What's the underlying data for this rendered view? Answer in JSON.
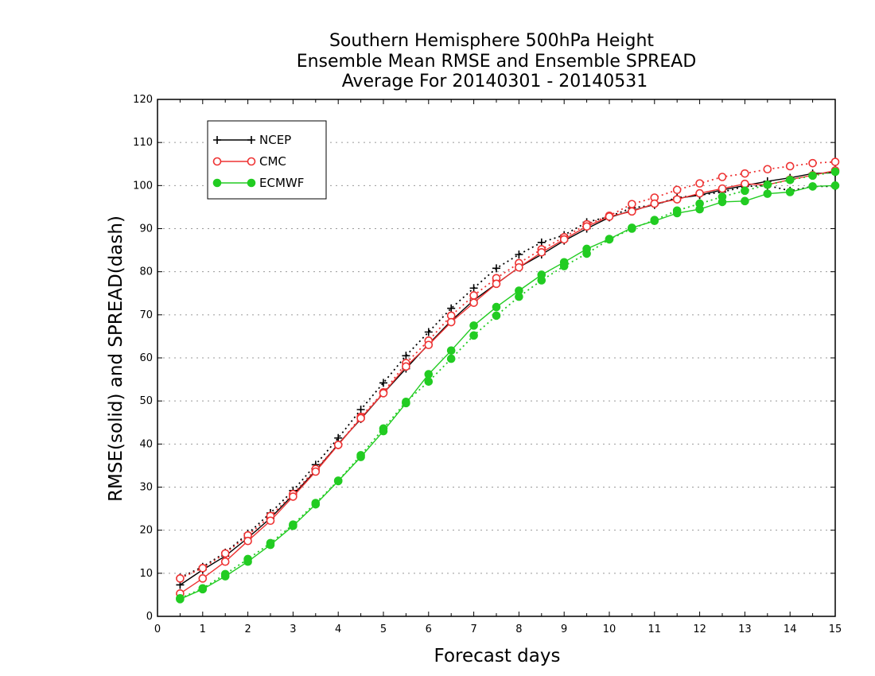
{
  "chart_data": {
    "type": "line",
    "title_lines": [
      "Southern Hemisphere 500hPa Height",
      "Ensemble Mean RMSE and Ensemble SPREAD",
      "Average For 20140301 - 20140531"
    ],
    "xlabel": "Forecast days",
    "ylabel": "RMSE(solid) and SPREAD(dash)",
    "xlim": [
      0,
      15
    ],
    "ylim": [
      0,
      120
    ],
    "xticks": [
      0,
      1,
      2,
      3,
      4,
      5,
      6,
      7,
      8,
      9,
      10,
      11,
      12,
      13,
      14,
      15
    ],
    "yticks": [
      0,
      10,
      20,
      30,
      40,
      50,
      60,
      70,
      80,
      90,
      100,
      110,
      120
    ],
    "grid": true,
    "legend_position": "top-left",
    "x": [
      0.5,
      1,
      1.5,
      2,
      2.5,
      3,
      3.5,
      4,
      4.5,
      5,
      5.5,
      6,
      6.5,
      7,
      7.5,
      8,
      8.5,
      9,
      9.5,
      10,
      10.5,
      11,
      11.5,
      12,
      12.5,
      13,
      13.5,
      14,
      14.5,
      15
    ],
    "series": [
      {
        "name": "NCEP",
        "color": "#000000",
        "marker": "plus",
        "rmse": [
          7.3,
          10.8,
          14.0,
          18.2,
          22.8,
          28.2,
          33.8,
          40.0,
          45.8,
          51.8,
          57.5,
          63.2,
          68.6,
          73.4,
          77.2,
          81.0,
          84.0,
          87.2,
          90.0,
          92.6,
          94.2,
          95.6,
          97.0,
          97.8,
          99.0,
          100.0,
          101.0,
          101.8,
          102.8,
          103.0
        ],
        "spread": [
          9.0,
          11.5,
          14.8,
          19.2,
          24.0,
          29.2,
          35.2,
          41.4,
          48.0,
          54.2,
          60.5,
          66.0,
          71.5,
          76.2,
          80.8,
          84.0,
          86.8,
          88.5,
          91.5,
          92.8,
          94.8,
          95.5,
          97.2,
          97.8,
          98.5,
          99.8,
          100.0,
          98.8,
          99.8,
          99.8
        ]
      },
      {
        "name": "CMC",
        "color": "#ee3333",
        "marker": "open-circle",
        "rmse": [
          5.3,
          8.8,
          12.7,
          17.5,
          22.2,
          27.8,
          33.6,
          39.8,
          46.0,
          51.8,
          58.0,
          63.0,
          68.3,
          72.8,
          77.2,
          81.0,
          84.5,
          87.5,
          90.5,
          92.8,
          94.0,
          95.8,
          96.8,
          98.2,
          99.3,
          100.4,
          100.2,
          101.4,
          102.4,
          103.5
        ],
        "spread": [
          8.8,
          11.2,
          14.6,
          18.8,
          23.3,
          28.4,
          34.2,
          39.8,
          46.3,
          52.0,
          58.8,
          64.0,
          69.8,
          74.5,
          78.5,
          82.0,
          85.2,
          88.0,
          91.0,
          93.0,
          95.7,
          97.2,
          99.0,
          100.5,
          102.0,
          102.8,
          103.8,
          104.5,
          105.2,
          105.5
        ]
      },
      {
        "name": "ECMWF",
        "color": "#22cc22",
        "marker": "filled-circle",
        "rmse": [
          4.0,
          6.3,
          9.3,
          12.7,
          16.6,
          21.0,
          26.0,
          31.4,
          37.0,
          43.0,
          49.5,
          56.2,
          61.7,
          67.5,
          71.8,
          75.6,
          79.3,
          82.2,
          85.3,
          87.6,
          90.2,
          91.8,
          93.6,
          94.5,
          96.2,
          96.4,
          98.1,
          98.5,
          99.8,
          100.0
        ],
        "spread": [
          4.2,
          6.5,
          9.8,
          13.3,
          17.0,
          21.3,
          26.3,
          31.5,
          37.4,
          43.6,
          49.8,
          54.5,
          59.8,
          65.2,
          69.8,
          74.2,
          78.0,
          81.3,
          84.2,
          87.5,
          90.0,
          92.0,
          94.2,
          95.8,
          97.4,
          98.8,
          100.2,
          101.3,
          102.3,
          103.2
        ]
      }
    ]
  }
}
